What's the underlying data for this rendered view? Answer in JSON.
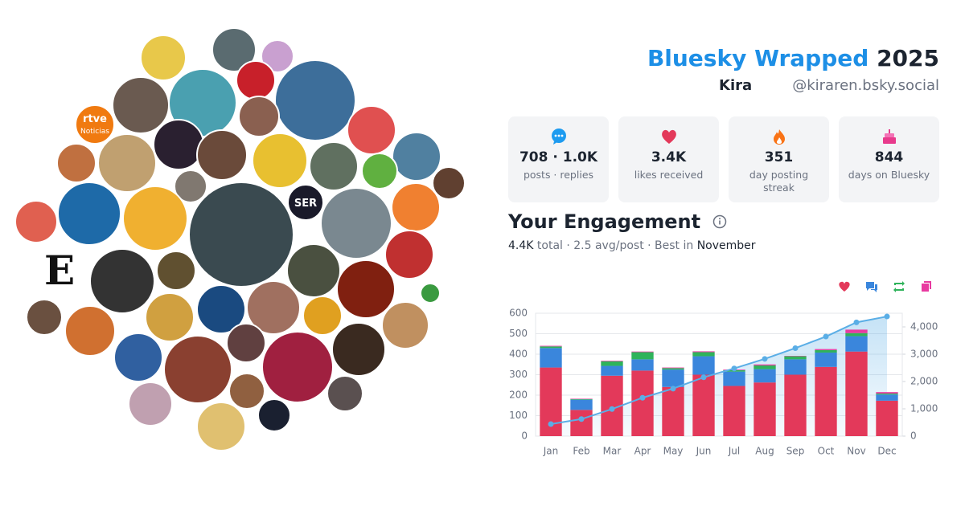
{
  "header": {
    "title": "Bluesky Wrapped",
    "year": "2025",
    "name": "Kira",
    "handle": "@kiraren.bsky.social"
  },
  "avatar_texts": [
    "rtve",
    "Noticias",
    "SER",
    "E"
  ],
  "stats": [
    {
      "value": "708 · 1.0K",
      "label": "posts · replies"
    },
    {
      "value": "3.4K",
      "label": "likes received"
    },
    {
      "value": "351",
      "label": "day posting streak"
    },
    {
      "value": "844",
      "label": "days on Bluesky"
    }
  ],
  "engagement": {
    "title": "Your Engagement",
    "total": "4.4K",
    "summary": " total · 2.5 avg/post · Best in ",
    "best_month": "November"
  },
  "chart_data": {
    "type": "bar",
    "stacked": true,
    "grid": true,
    "categories": [
      "Jan",
      "Feb",
      "Mar",
      "Apr",
      "May",
      "Jun",
      "Jul",
      "Aug",
      "Sep",
      "Oct",
      "Nov",
      "Dec"
    ],
    "series": [
      {
        "type": "bar",
        "color": "#e3395a",
        "values": [
          335,
          128,
          295,
          320,
          240,
          300,
          245,
          262,
          300,
          338,
          413,
          173
        ]
      },
      {
        "type": "bar",
        "color": "#3a86dc",
        "values": [
          95,
          50,
          48,
          55,
          85,
          90,
          70,
          65,
          75,
          70,
          75,
          30
        ]
      },
      {
        "type": "bar",
        "color": "#2fb35b",
        "values": [
          8,
          3,
          22,
          35,
          7,
          20,
          7,
          18,
          15,
          12,
          15,
          5
        ]
      },
      {
        "type": "bar",
        "color": "#e83aa0",
        "values": [
          3,
          2,
          3,
          3,
          3,
          4,
          3,
          5,
          2,
          5,
          17,
          7
        ]
      },
      {
        "type": "line",
        "axis": "y2",
        "color": "#5aaee6",
        "values": [
          441,
          624,
          992,
          1405,
          1740,
          2154,
          2479,
          2829,
          3221,
          3646,
          4166,
          4381
        ]
      }
    ],
    "ylim": [
      0,
      600
    ],
    "yticks": [
      0,
      100,
      200,
      300,
      400,
      500,
      600
    ],
    "y2lim": [
      0,
      4500
    ],
    "y2ticks": [
      0,
      {
        "value": 1000,
        "label": "1,000"
      },
      {
        "value": 2000,
        "label": "2,000"
      },
      {
        "value": 3000,
        "label": "3,000"
      },
      {
        "value": 4000,
        "label": "4,000"
      }
    ]
  }
}
